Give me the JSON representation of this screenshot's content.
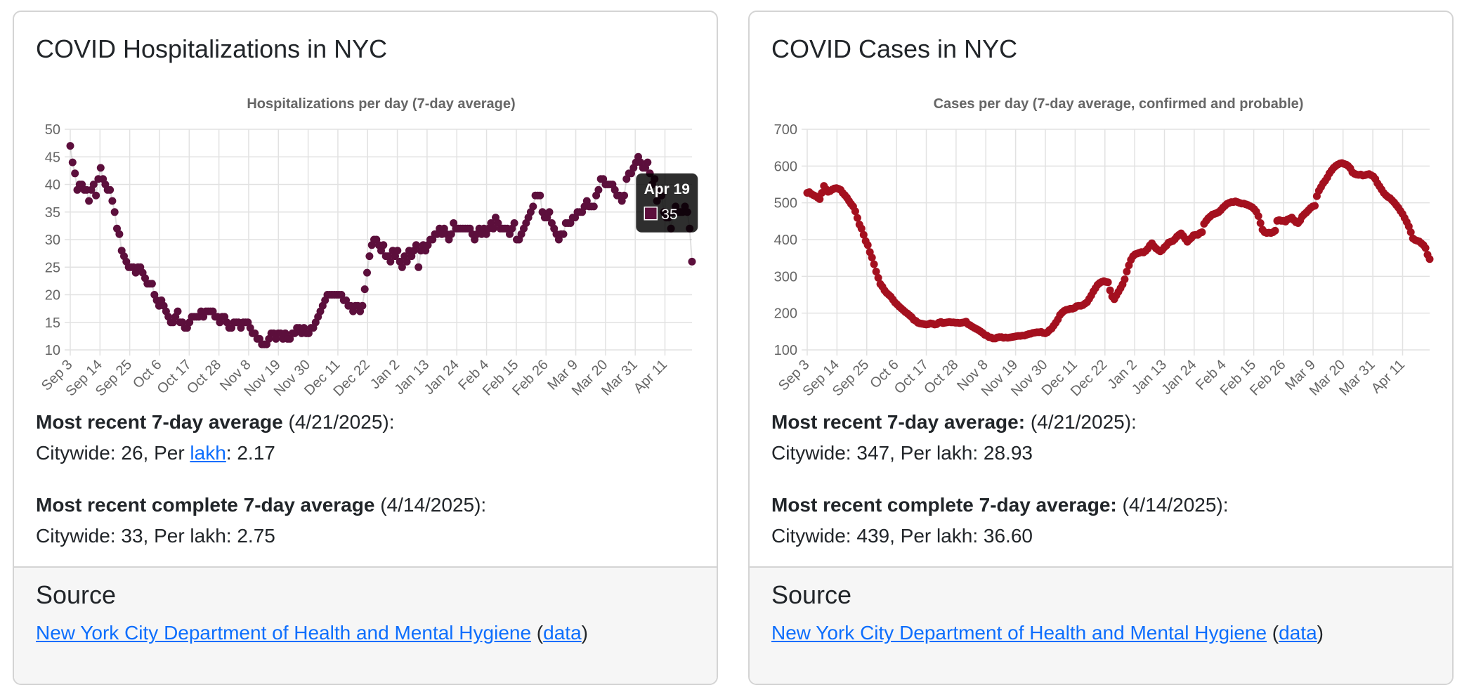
{
  "hospitalizations": {
    "card_title": "COVID Hospitalizations in NYC",
    "recent": {
      "label": "Most recent 7-day average",
      "date_text": " (4/21/2025):",
      "line_prefix": "Citywide: 26, Per ",
      "link_text": "lakh",
      "line_suffix": ": 2.17"
    },
    "complete": {
      "label": "Most recent complete 7-day average",
      "date_text": " (4/14/2025):",
      "line": "Citywide: 33, Per lakh: 2.75"
    },
    "source": {
      "title": "Source",
      "link": "New York City Department of Health and Mental Hygiene",
      "open": " (",
      "data_link": "data",
      "close": ")"
    },
    "tooltip": {
      "date": "Apr 19",
      "value": "35"
    }
  },
  "cases": {
    "card_title": "COVID Cases in NYC",
    "recent": {
      "label": "Most recent 7-day average:",
      "date_text": " (4/21/2025):",
      "line": "Citywide: 347, Per lakh: 28.93"
    },
    "complete": {
      "label": "Most recent complete 7-day average:",
      "date_text": " (4/14/2025):",
      "line": "Citywide: 439, Per lakh: 36.60"
    },
    "source": {
      "title": "Source",
      "link": "New York City Department of Health and Mental Hygiene",
      "open": " (",
      "data_link": "data",
      "close": ")"
    }
  },
  "chart_data": [
    {
      "type": "scatter",
      "title": "Hospitalizations per day (7-day average)",
      "color": "#5c0f3c",
      "x_start": "2024-09-03",
      "x_end": "2025-04-21",
      "x_tick_labels": [
        "Sep 3",
        "Sep 14",
        "Sep 25",
        "Oct 6",
        "Oct 17",
        "Oct 28",
        "Nov 8",
        "Nov 19",
        "Nov 30",
        "Dec 11",
        "Dec 22",
        "Jan 2",
        "Jan 13",
        "Jan 24",
        "Feb 4",
        "Feb 15",
        "Feb 26",
        "Mar 9",
        "Mar 20",
        "Mar 31",
        "Apr 11"
      ],
      "y_ticks": [
        10,
        15,
        20,
        25,
        30,
        35,
        40,
        45,
        50
      ],
      "ylim": [
        10,
        50
      ],
      "grid": true,
      "values": [
        47,
        44,
        42,
        39,
        40,
        40,
        39,
        39,
        37,
        39,
        40,
        38,
        41,
        43,
        41,
        40,
        39,
        39,
        37,
        35,
        32,
        31,
        28,
        27,
        26,
        25,
        25,
        25,
        24,
        25,
        25,
        24,
        23,
        22,
        22,
        22,
        20,
        19,
        18,
        19,
        18,
        17,
        16,
        15,
        15,
        16,
        17,
        15,
        15,
        14,
        14,
        15,
        16,
        16,
        16,
        16,
        17,
        16,
        17,
        17,
        17,
        17,
        16,
        16,
        15,
        16,
        16,
        15,
        14,
        14,
        15,
        15,
        15,
        14,
        15,
        15,
        15,
        14,
        13,
        13,
        12,
        12,
        11,
        11,
        11,
        12,
        13,
        13,
        12,
        13,
        13,
        12,
        13,
        12,
        12,
        13,
        13,
        14,
        14,
        13,
        14,
        13,
        13,
        14,
        14,
        15,
        16,
        17,
        18,
        19,
        20,
        20,
        20,
        20,
        20,
        20,
        20,
        19,
        19,
        18,
        18,
        17,
        18,
        18,
        17,
        18,
        21,
        24,
        27,
        29,
        30,
        30,
        29,
        28,
        29,
        27,
        27,
        26,
        28,
        27,
        28,
        26,
        25,
        27,
        26,
        28,
        27,
        28,
        29,
        25,
        28,
        29,
        28,
        29,
        30,
        30,
        31,
        31,
        32,
        31,
        32,
        31,
        30,
        31,
        33,
        32,
        32,
        32,
        32,
        32,
        32,
        32,
        31,
        30,
        31,
        32,
        31,
        32,
        31,
        32,
        33,
        32,
        34,
        33,
        32,
        32,
        32,
        32,
        31,
        32,
        33,
        30,
        30,
        31,
        32,
        33,
        34,
        35,
        36,
        38,
        38,
        38,
        35,
        34,
        34,
        35,
        33,
        32,
        31,
        30,
        31,
        31,
        33,
        33,
        33,
        34,
        34,
        35,
        35,
        35,
        36,
        37,
        36,
        36,
        36,
        38,
        39,
        41,
        41,
        40,
        40,
        40,
        40,
        39,
        38,
        38,
        37,
        38,
        41,
        42,
        42,
        43,
        44,
        45,
        44,
        43,
        43,
        44,
        42,
        40,
        41,
        37,
        39,
        38,
        35,
        34,
        34,
        32,
        35,
        36,
        35,
        35,
        35,
        36,
        35,
        32,
        26
      ]
    },
    {
      "type": "scatter",
      "title": "Cases per day (7-day average, confirmed and probable)",
      "color": "#a4101f",
      "x_start": "2024-09-03",
      "x_end": "2025-04-21",
      "x_tick_labels": [
        "Sep 3",
        "Sep 14",
        "Sep 25",
        "Oct 6",
        "Oct 17",
        "Oct 28",
        "Nov 8",
        "Nov 19",
        "Nov 30",
        "Dec 11",
        "Dec 22",
        "Jan 2",
        "Jan 13",
        "Jan 24",
        "Feb 4",
        "Feb 15",
        "Feb 26",
        "Mar 9",
        "Mar 20",
        "Mar 31",
        "Apr 11"
      ],
      "y_ticks": [
        100,
        200,
        300,
        400,
        500,
        600,
        700
      ],
      "ylim": [
        100,
        700
      ],
      "grid": true,
      "values": [
        527,
        529,
        524,
        521,
        518,
        514,
        510,
        527,
        546,
        537,
        530,
        532,
        536,
        539,
        540,
        538,
        535,
        527,
        521,
        514,
        505,
        497,
        490,
        477,
        459,
        441,
        430,
        413,
        396,
        385,
        366,
        351,
        333,
        313,
        296,
        279,
        272,
        262,
        255,
        250,
        245,
        237,
        229,
        224,
        218,
        213,
        208,
        203,
        199,
        194,
        189,
        182,
        179,
        174,
        172,
        171,
        170,
        169,
        170,
        172,
        171,
        169,
        170,
        174,
        176,
        173,
        174,
        175,
        176,
        175,
        175,
        174,
        174,
        173,
        174,
        175,
        177,
        170,
        167,
        163,
        160,
        157,
        154,
        150,
        146,
        141,
        139,
        135,
        134,
        131,
        131,
        134,
        135,
        135,
        133,
        134,
        133,
        134,
        135,
        136,
        137,
        138,
        138,
        139,
        139,
        141,
        143,
        144,
        146,
        147,
        148,
        148,
        149,
        146,
        145,
        148,
        154,
        158,
        166,
        174,
        183,
        195,
        201,
        206,
        209,
        210,
        212,
        212,
        214,
        219,
        220,
        220,
        222,
        226,
        230,
        239,
        248,
        259,
        268,
        277,
        282,
        285,
        287,
        285,
        284,
        262,
        245,
        238,
        248,
        258,
        268,
        278,
        292,
        313,
        330,
        345,
        355,
        360,
        362,
        364,
        366,
        365,
        369,
        375,
        384,
        390,
        382,
        376,
        372,
        368,
        372,
        379,
        384,
        392,
        394,
        396,
        401,
        408,
        413,
        417,
        410,
        402,
        394,
        400,
        405,
        412,
        413,
        413,
        418,
        420,
        443,
        451,
        458,
        463,
        468,
        470,
        472,
        475,
        480,
        487,
        492,
        497,
        500,
        502,
        502,
        504,
        502,
        500,
        498,
        498,
        496,
        494,
        491,
        488,
        483,
        476,
        464,
        445,
        427,
        420,
        418,
        419,
        418,
        420,
        424,
        451,
        453,
        451,
        451,
        449,
        455,
        457,
        460,
        453,
        447,
        445,
        452,
        463,
        469,
        474,
        480,
        486,
        490,
        492,
        518,
        533,
        543,
        553,
        560,
        569,
        580,
        588,
        595,
        600,
        604,
        607,
        608,
        606,
        604,
        600,
        594,
        583,
        579,
        577,
        576,
        577,
        574,
        575,
        577,
        578,
        575,
        572,
        565,
        553,
        545,
        536,
        527,
        521,
        516,
        513,
        507,
        501,
        494,
        487,
        478,
        470,
        459,
        448,
        436,
        420,
        403,
        399,
        397,
        395,
        390,
        385,
        377,
        359,
        347
      ]
    }
  ]
}
